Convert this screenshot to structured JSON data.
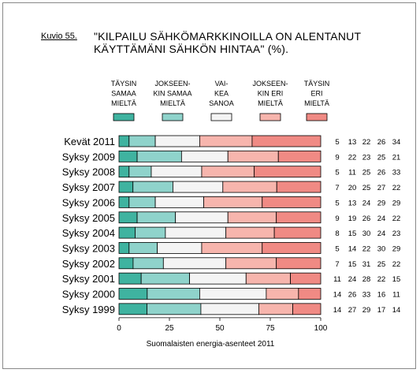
{
  "figure": {
    "label": "Kuvio 55.",
    "title_line_1": "\"KILPAILU SÄHKÖMARKKINOILLA ON ALENTANUT",
    "title_line_2": "KÄYTTÄMÄNI SÄHKÖN HINTAA\" (%).",
    "source": "Suomalaisten energia-asenteet 2011"
  },
  "chart_data": {
    "type": "bar",
    "orientation": "horizontal",
    "stacked": true,
    "percent_scale": true,
    "xlim": [
      0,
      100
    ],
    "xticks": [
      0,
      25,
      50,
      75,
      100
    ],
    "grid": false,
    "legend_position": "top",
    "categories": [
      "Kevät 2011",
      "Syksy 2009",
      "Syksy 2008",
      "Syksy 2007",
      "Syksy 2006",
      "Syksy 2005",
      "Syksy 2004",
      "Syksy 2003",
      "Syksy 2002",
      "Syksy 2001",
      "Syksy 2000",
      "Syksy 1999"
    ],
    "series": [
      {
        "name": [
          "TÄYSIN",
          "SAMAA",
          "MIELTÄ"
        ],
        "color": "#3fb3a0",
        "values": [
          5,
          9,
          5,
          7,
          5,
          9,
          8,
          5,
          7,
          11,
          14,
          14
        ]
      },
      {
        "name": [
          "JOKSEEN-",
          "KIN SAMAA",
          "MIELTÄ"
        ],
        "color": "#8fd3cb",
        "values": [
          13,
          22,
          11,
          20,
          13,
          19,
          15,
          14,
          15,
          24,
          26,
          27
        ]
      },
      {
        "name": [
          "VAI-",
          "KEA",
          "SANOA"
        ],
        "color": "#f4f4f4",
        "values": [
          22,
          23,
          25,
          25,
          24,
          26,
          30,
          22,
          31,
          28,
          33,
          29
        ]
      },
      {
        "name": [
          "JOKSEEN-",
          "KIN ERI",
          "MIELTÄ"
        ],
        "color": "#f7b5ad",
        "values": [
          26,
          25,
          26,
          27,
          29,
          24,
          24,
          30,
          25,
          22,
          16,
          17
        ]
      },
      {
        "name": [
          "TÄYSIN",
          "ERI",
          "MIELTÄ"
        ],
        "color": "#f08a84",
        "values": [
          34,
          21,
          33,
          22,
          29,
          22,
          23,
          29,
          22,
          15,
          11,
          14
        ]
      }
    ]
  }
}
